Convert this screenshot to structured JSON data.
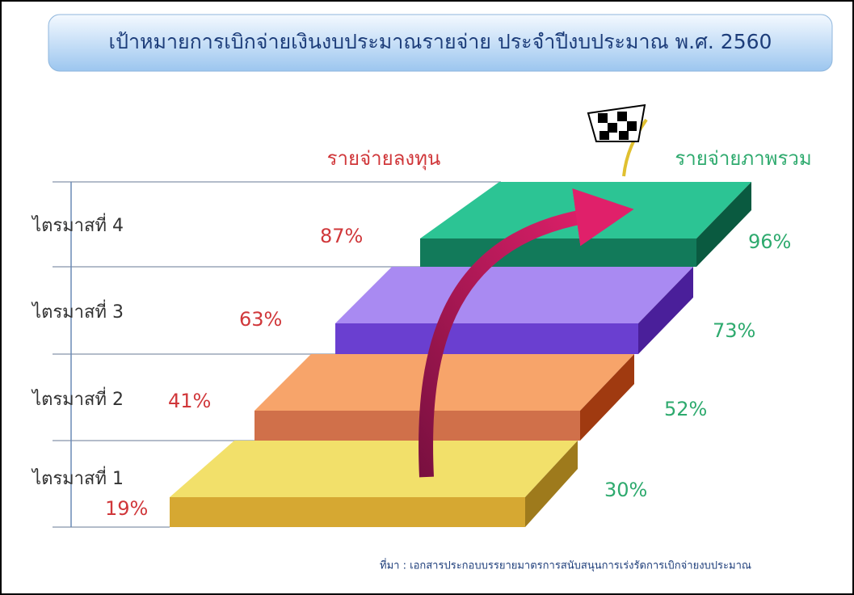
{
  "header": {
    "title": "เป้าหมายการเบิกจ่ายเงินงบประมาณรายจ่าย ประจำปีงบประมาณ พ.ศ. 2560"
  },
  "columns": {
    "capital": "รายจ่ายลงทุน",
    "total": "รายจ่ายภาพรวม"
  },
  "steps": [
    {
      "label": "ไตรมาสที่ 1",
      "capital": "19%",
      "total": "30%"
    },
    {
      "label": "ไตรมาสที่ 2",
      "capital": "41%",
      "total": "52%"
    },
    {
      "label": "ไตรมาสที่ 3",
      "capital": "63%",
      "total": "73%"
    },
    {
      "label": "ไตรมาสที่ 4",
      "capital": "87%",
      "total": "96%"
    }
  ],
  "footer": {
    "source": "ที่มา : เอกสารประกอบบรรยายมาตรการสนับสนุนการเร่งรัดการเบิกจ่ายงบประมาณ"
  }
}
